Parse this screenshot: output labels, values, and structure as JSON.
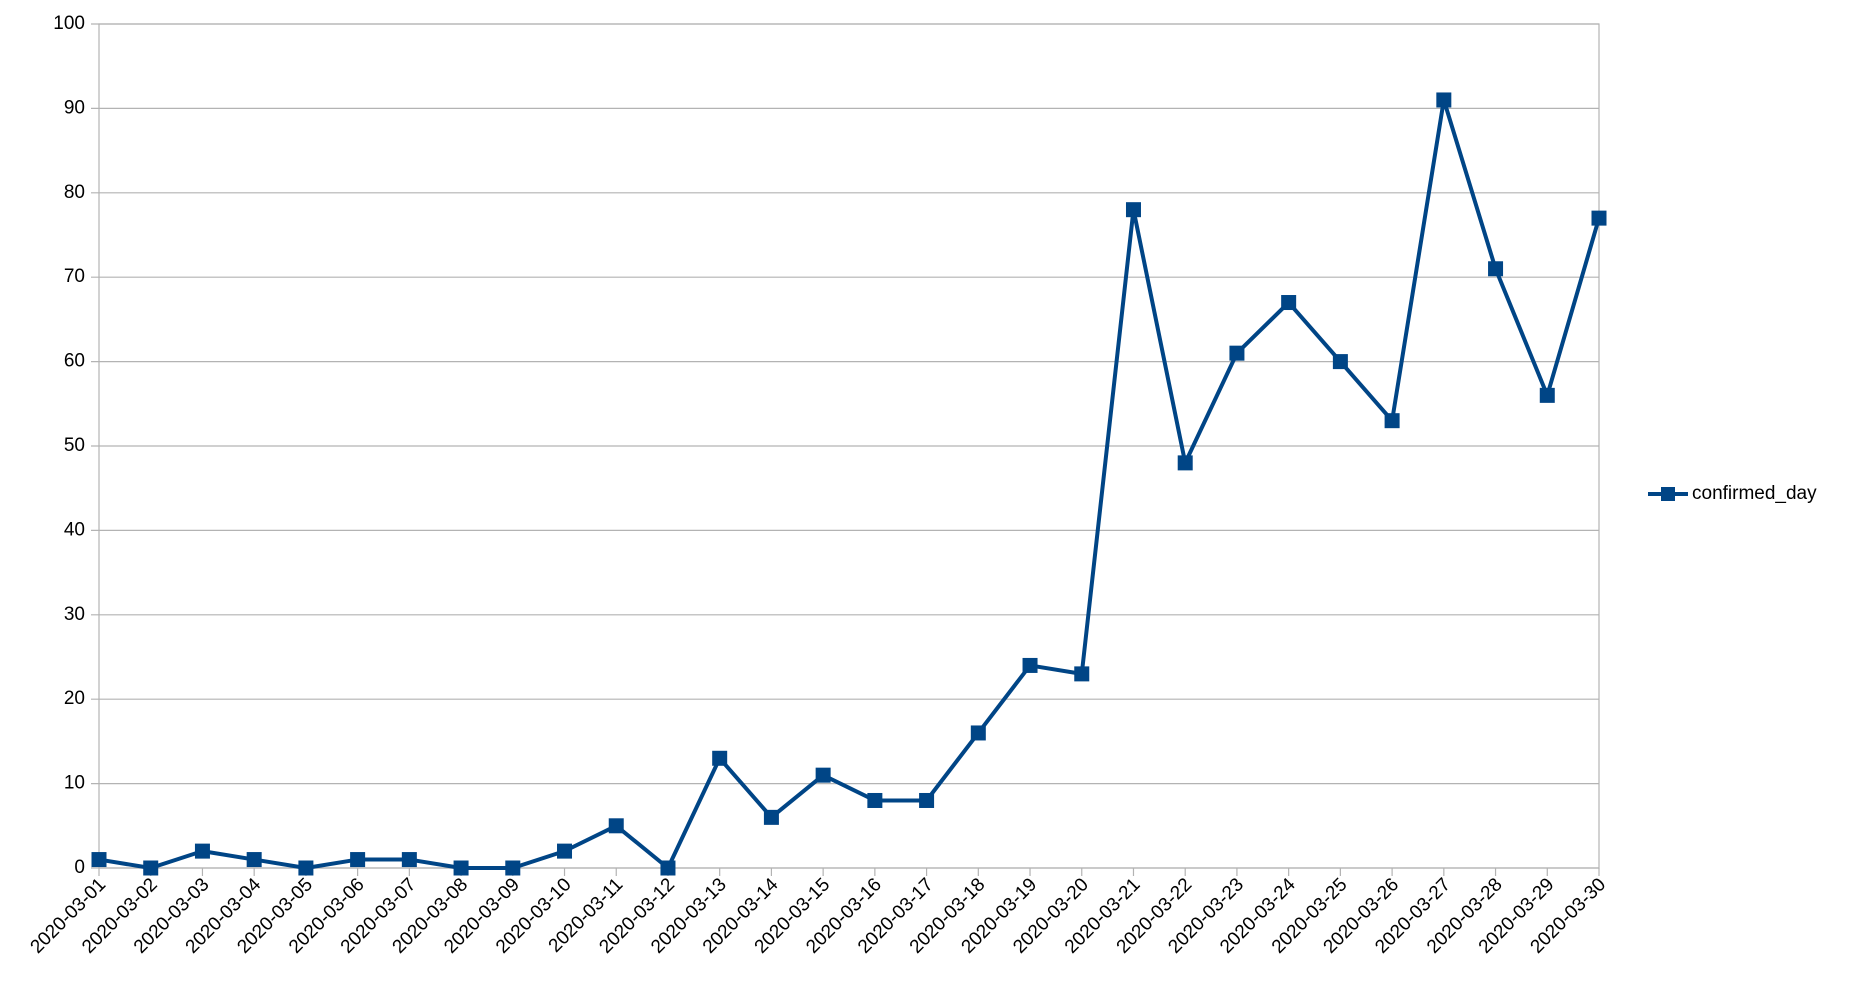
{
  "chart_data": {
    "type": "line",
    "categories": [
      "2020-03-01",
      "2020-03-02",
      "2020-03-03",
      "2020-03-04",
      "2020-03-05",
      "2020-03-06",
      "2020-03-07",
      "2020-03-08",
      "2020-03-09",
      "2020-03-10",
      "2020-03-11",
      "2020-03-12",
      "2020-03-13",
      "2020-03-14",
      "2020-03-15",
      "2020-03-16",
      "2020-03-17",
      "2020-03-18",
      "2020-03-19",
      "2020-03-20",
      "2020-03-21",
      "2020-03-22",
      "2020-03-23",
      "2020-03-24",
      "2020-03-25",
      "2020-03-26",
      "2020-03-27",
      "2020-03-28",
      "2020-03-29",
      "2020-03-30"
    ],
    "series": [
      {
        "name": "confirmed_day",
        "color": "#004586",
        "values": [
          1,
          0,
          2,
          1,
          0,
          1,
          1,
          0,
          0,
          2,
          5,
          0,
          13,
          6,
          11,
          8,
          8,
          16,
          24,
          23,
          78,
          48,
          61,
          67,
          60,
          53,
          91,
          71,
          56,
          77
        ]
      }
    ],
    "ylim": [
      0,
      100
    ],
    "yticks": [
      0,
      10,
      20,
      30,
      40,
      50,
      60,
      70,
      80,
      90,
      100
    ],
    "grid": true,
    "legend": "right"
  }
}
